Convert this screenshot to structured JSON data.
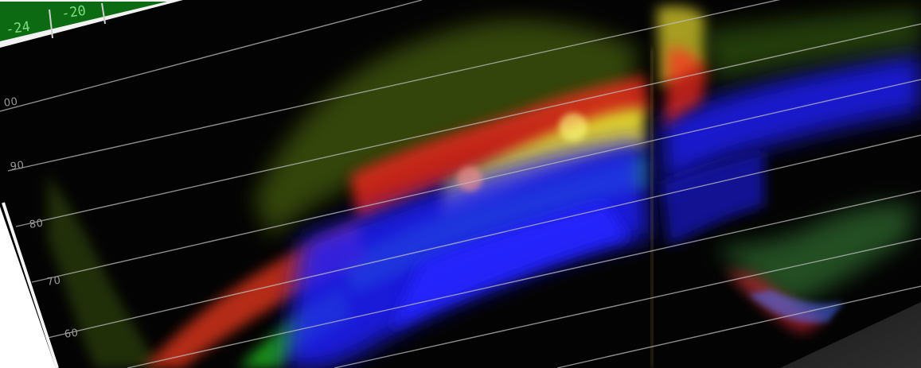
{
  "header": {
    "tabs": [
      {
        "label": "-24"
      },
      {
        "label": "-20"
      }
    ]
  },
  "waveform": {
    "scale_labels": [
      "00",
      "90",
      "80",
      "70",
      "60"
    ],
    "colors": {
      "red": "#ff2a1a",
      "green": "#2cff2c",
      "blue": "#1a1aff",
      "yellow": "#fff030",
      "graticule": "#bdbdbd",
      "tab_green": "#0c6a12"
    }
  }
}
